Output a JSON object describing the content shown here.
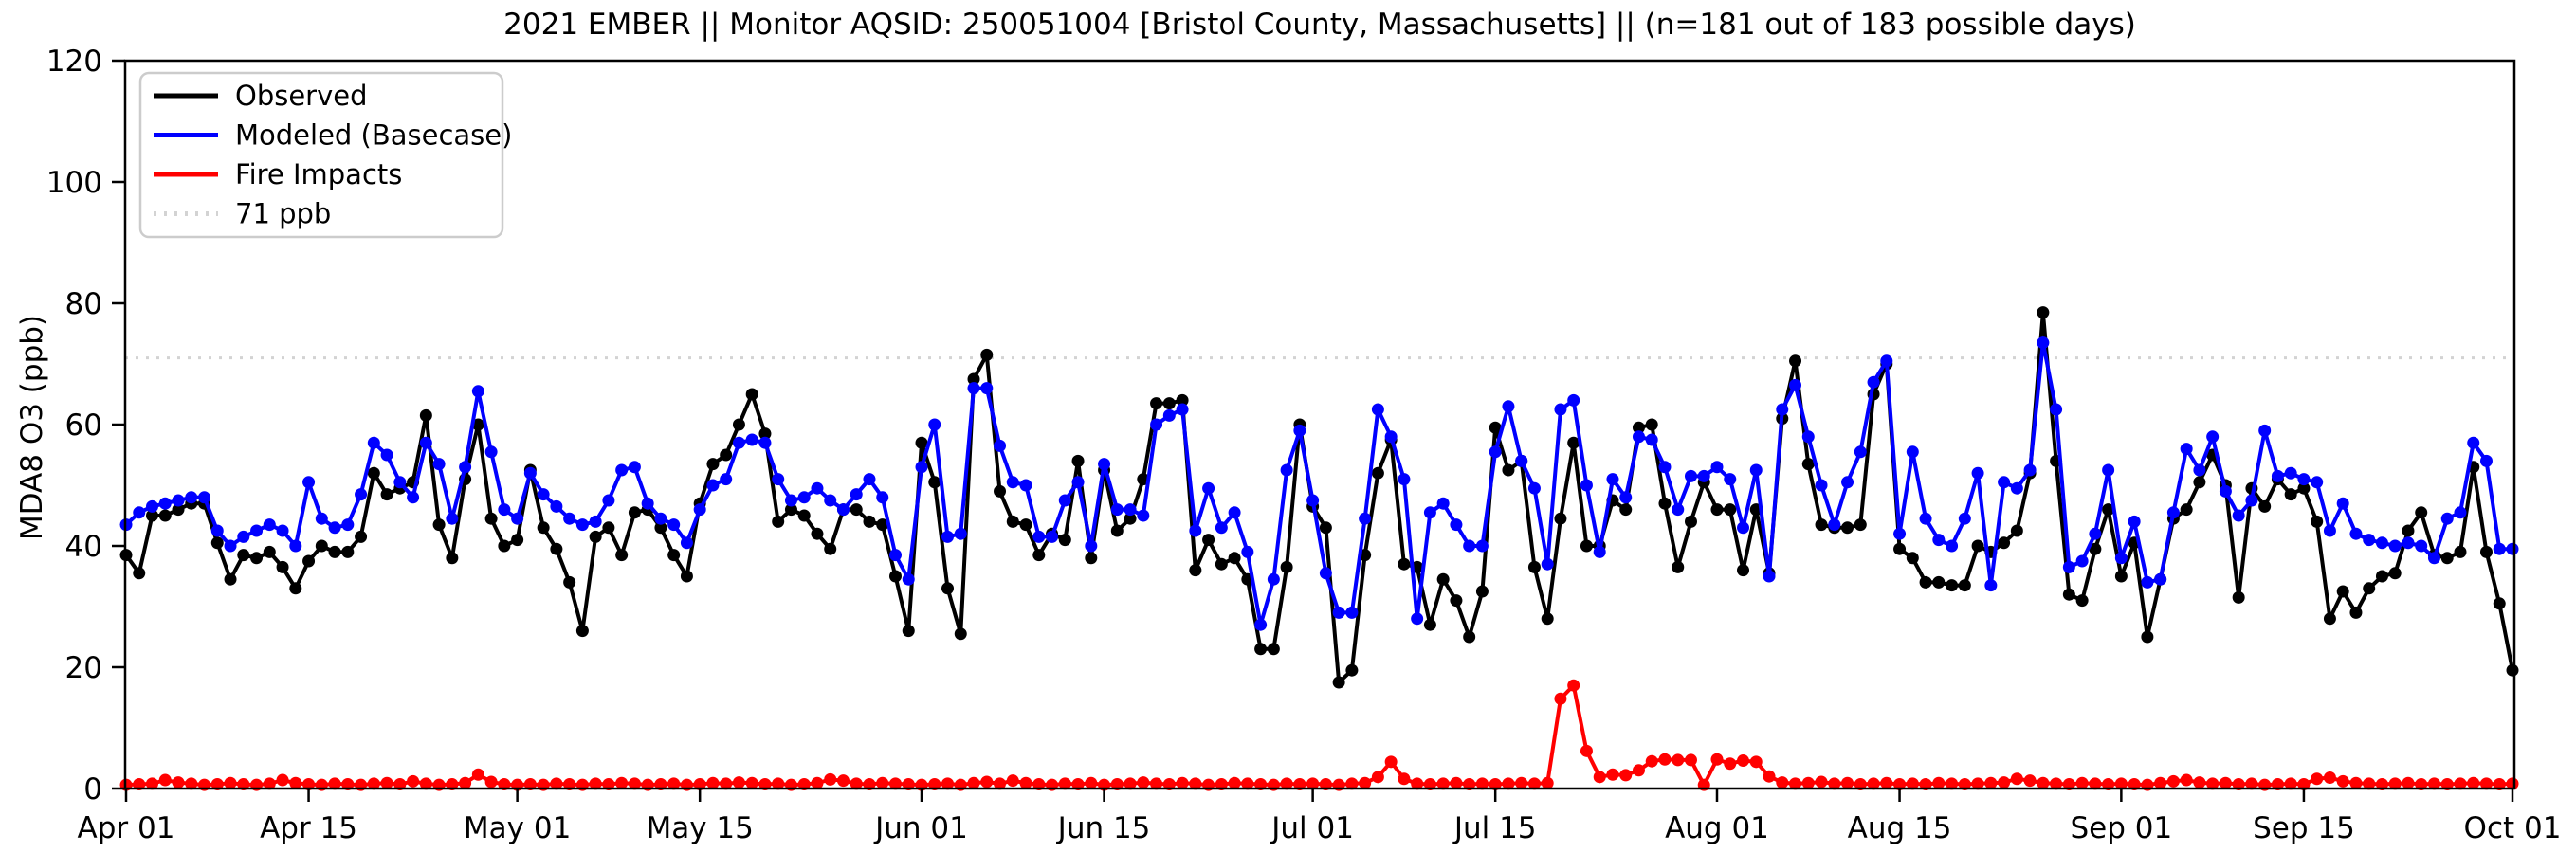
{
  "chart_data": {
    "type": "line",
    "title": "2021 EMBER || Monitor AQSID: 250051004 [Bristol County, Massachusetts] || (n=181 out of 183 possible days)",
    "xlabel": "",
    "ylabel": "MDA8 O3 (ppb)",
    "ylim": [
      0,
      120
    ],
    "yticks": [
      0,
      20,
      40,
      60,
      80,
      100,
      120
    ],
    "grid": false,
    "legend_position": "upper left",
    "threshold": {
      "label": "71 ppb",
      "value": 71,
      "color": "#d3d3d3",
      "style": "dotted"
    },
    "x_unit": "day index from Apr 01, 2021 (daily values through Oct 01)",
    "xticks": [
      {
        "label": "Apr 01",
        "day": 0
      },
      {
        "label": "Apr 15",
        "day": 14
      },
      {
        "label": "May 01",
        "day": 30
      },
      {
        "label": "May 15",
        "day": 44
      },
      {
        "label": "Jun 01",
        "day": 61
      },
      {
        "label": "Jun 15",
        "day": 75
      },
      {
        "label": "Jul 01",
        "day": 91
      },
      {
        "label": "Jul 15",
        "day": 105
      },
      {
        "label": "Aug 01",
        "day": 122
      },
      {
        "label": "Aug 15",
        "day": 136
      },
      {
        "label": "Sep 01",
        "day": 153
      },
      {
        "label": "Sep 15",
        "day": 167
      },
      {
        "label": "Oct 01",
        "day": 183
      }
    ],
    "series": [
      {
        "name": "Observed",
        "color": "#000000",
        "values": [
          38.5,
          35.5,
          45,
          45,
          46,
          47,
          47,
          40.5,
          34.5,
          38.5,
          38,
          39,
          36.5,
          33,
          37.5,
          40,
          39,
          39,
          41.5,
          52,
          48.5,
          49.5,
          50.5,
          61.5,
          43.5,
          38,
          51,
          60,
          44.5,
          40,
          41,
          52.5,
          43,
          39.5,
          34,
          26,
          41.5,
          43,
          38.5,
          45.5,
          46,
          43,
          38.5,
          35,
          47,
          53.5,
          55,
          60,
          65,
          58.5,
          44,
          46,
          45,
          42,
          39.5,
          46,
          46,
          44,
          43.5,
          35,
          26,
          57,
          50.5,
          33,
          25.5,
          67.5,
          71.5,
          49,
          44,
          43.5,
          38.5,
          42,
          41,
          54,
          38,
          52.5,
          42.5,
          44.5,
          51,
          63.5,
          63.5,
          64,
          36,
          41,
          37,
          38,
          34.5,
          23,
          23,
          36.5,
          60,
          46.5,
          43,
          17.5,
          19.5,
          38.5,
          52,
          57.5,
          37,
          36.5,
          27,
          34.5,
          31,
          25,
          32.5,
          59.5,
          52.5,
          54,
          36.5,
          28,
          44.5,
          57,
          40,
          40,
          47.5,
          46,
          59.5,
          60,
          47,
          36.5,
          44,
          50.5,
          46,
          46,
          36,
          46,
          35.5,
          61,
          70.5,
          53.5,
          43.5,
          43,
          43,
          43.5,
          65,
          70,
          39.5,
          38,
          34,
          34,
          33.5,
          33.5,
          40,
          39,
          40.5,
          42.5,
          52,
          78.5,
          54,
          32,
          31,
          39.5,
          46,
          35,
          40.5,
          25,
          34.5,
          44.5,
          46,
          50.5,
          55,
          50,
          31.5,
          49.5,
          46.5,
          51,
          48.5,
          49.5,
          44,
          28,
          32.5,
          29,
          33,
          35,
          35.5,
          42.5,
          45.5,
          38.5,
          38,
          39,
          53,
          39,
          30.5,
          19.5
        ]
      },
      {
        "name": "Modeled (Basecase)",
        "color": "#0000ff",
        "values": [
          43.5,
          45.5,
          46.5,
          47,
          47.5,
          48,
          48,
          42.5,
          40,
          41.5,
          42.5,
          43.5,
          42.5,
          40,
          50.5,
          44.5,
          43,
          43.5,
          48.5,
          57,
          55,
          50.5,
          48,
          57,
          53.5,
          44.5,
          53,
          65.5,
          55.5,
          46,
          44.5,
          52,
          48.5,
          46.5,
          44.5,
          43.5,
          44,
          47.5,
          52.5,
          53,
          47,
          44.5,
          43.5,
          40.5,
          46,
          50,
          51,
          57,
          57.5,
          57,
          51,
          47.5,
          48,
          49.5,
          47.5,
          46,
          48.5,
          51,
          48,
          38.5,
          34.5,
          53,
          60,
          41.5,
          42,
          66,
          66,
          56.5,
          50.5,
          50,
          41.5,
          41.5,
          47.5,
          50.5,
          40,
          53.5,
          46,
          46,
          45,
          60,
          61.5,
          62.5,
          42.5,
          49.5,
          43,
          45.5,
          39,
          27,
          34.5,
          52.5,
          59,
          47.5,
          35.5,
          29,
          29,
          44.5,
          62.5,
          58,
          51,
          28,
          45.5,
          47,
          43.5,
          40,
          40,
          55.5,
          63,
          54,
          49.5,
          37,
          62.5,
          64,
          50,
          39,
          51,
          48,
          58,
          57.5,
          53,
          46,
          51.5,
          51.5,
          53,
          51,
          43,
          52.5,
          35,
          62.5,
          66.5,
          58,
          50,
          43.5,
          50.5,
          55.5,
          67,
          70.5,
          42,
          55.5,
          44.5,
          41,
          40,
          44.5,
          52,
          33.5,
          50.5,
          49.5,
          52.5,
          73.5,
          62.5,
          36.5,
          37.5,
          42,
          52.5,
          38,
          44,
          34,
          34.5,
          45.5,
          56,
          52.5,
          58,
          49,
          45,
          47.5,
          59,
          51.5,
          52,
          51,
          50.5,
          42.5,
          47,
          42,
          41,
          40.5,
          40,
          40.5,
          40,
          38,
          44.5,
          45.5,
          57,
          54,
          39.5,
          39.5
        ]
      },
      {
        "name": "Fire Impacts",
        "color": "#ff0000",
        "values": [
          0.6,
          0.7,
          0.8,
          1.4,
          1,
          0.8,
          0.6,
          0.7,
          0.9,
          0.7,
          0.6,
          0.8,
          1.4,
          0.9,
          0.7,
          0.6,
          0.8,
          0.7,
          0.6,
          0.8,
          0.9,
          0.7,
          1.2,
          0.8,
          0.6,
          0.7,
          0.9,
          2.3,
          1.1,
          0.7,
          0.6,
          0.7,
          0.6,
          0.8,
          0.7,
          0.6,
          0.8,
          0.7,
          0.9,
          0.8,
          0.6,
          0.7,
          0.8,
          0.6,
          0.7,
          0.9,
          0.8,
          1,
          0.9,
          0.7,
          0.8,
          0.6,
          0.7,
          0.9,
          1.5,
          1.3,
          0.8,
          0.7,
          0.9,
          0.8,
          0.7,
          0.6,
          0.7,
          0.8,
          0.6,
          0.9,
          1.1,
          0.8,
          1.3,
          0.9,
          0.7,
          0.6,
          0.8,
          0.7,
          0.9,
          0.6,
          0.7,
          0.8,
          1,
          0.8,
          0.7,
          0.9,
          0.8,
          0.6,
          0.7,
          0.9,
          0.8,
          0.7,
          0.6,
          0.8,
          0.7,
          0.8,
          0.7,
          0.6,
          0.8,
          0.9,
          1.9,
          4.4,
          1.6,
          0.8,
          0.7,
          0.8,
          0.9,
          0.7,
          0.8,
          0.7,
          0.8,
          0.9,
          0.8,
          0.9,
          14.8,
          17,
          6.2,
          1.9,
          2.3,
          2.2,
          3,
          4.5,
          4.8,
          4.7,
          4.7,
          0.6,
          4.8,
          4.1,
          4.6,
          4.4,
          2,
          1,
          0.8,
          0.9,
          1.1,
          0.8,
          0.9,
          0.7,
          0.8,
          0.9,
          0.7,
          0.8,
          0.7,
          0.9,
          0.8,
          0.7,
          0.8,
          0.9,
          1,
          1.6,
          1.3,
          0.9,
          0.8,
          0.7,
          0.9,
          0.8,
          0.7,
          0.8,
          0.7,
          0.6,
          0.9,
          1.2,
          1.4,
          1,
          0.8,
          0.9,
          0.7,
          0.8,
          0.6,
          0.7,
          0.8,
          0.7,
          1.6,
          1.8,
          1.2,
          0.9,
          0.8,
          0.7,
          0.8,
          0.9,
          0.7,
          0.8,
          0.7,
          0.8,
          0.9,
          0.8,
          0.7,
          0.8
        ]
      }
    ],
    "legend_entries": [
      "Observed",
      "Modeled (Basecase)",
      "Fire Impacts",
      "71 ppb"
    ]
  },
  "layout_note_colors": {
    "axis": "#000000",
    "background": "#ffffff"
  }
}
